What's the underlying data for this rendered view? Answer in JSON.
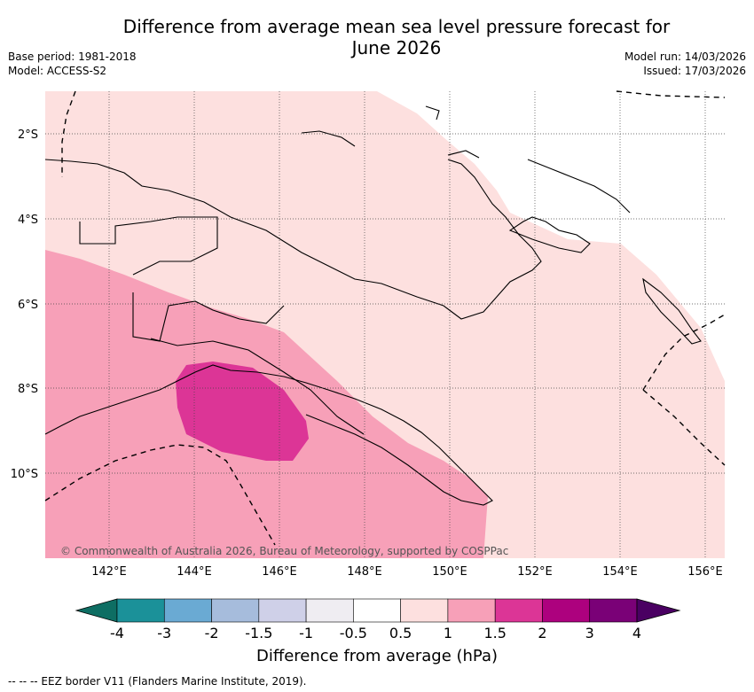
{
  "title_line1": "Difference from average mean sea level pressure forecast for",
  "title_line2": "June 2026",
  "left_meta": {
    "base_period": "Base period: 1981-2018",
    "model": "Model: ACCESS-S2"
  },
  "right_meta": {
    "model_run": "Model run: 14/03/2026",
    "issued": "Issued: 17/03/2026"
  },
  "lat_labels": [
    "2°S",
    "4°S",
    "6°S",
    "8°S",
    "10°S"
  ],
  "lon_labels": [
    "142°E",
    "144°E",
    "146°E",
    "148°E",
    "150°E",
    "152°E",
    "154°E",
    "156°E"
  ],
  "copyright": "© Commonwealth of Australia 2026, Bureau of Meteorology, supported by COSPPac",
  "colorbar": {
    "title": "Difference from average (hPa)",
    "tick_labels": [
      "-4",
      "-3",
      "-2",
      "-1.5",
      "-1",
      "-0.5",
      "0.5",
      "1",
      "1.5",
      "2",
      "3",
      "4"
    ],
    "colors": [
      "#0e6e63",
      "#1b9199",
      "#6aaad3",
      "#a6bcdc",
      "#cfd0e8",
      "#efedf2",
      "#ffffff",
      "#fde0df",
      "#f7a0b8",
      "#dc3596",
      "#ad017e",
      "#7a0177",
      "#4a0062"
    ]
  },
  "fill_colors": {
    "light_pink": "#fde0df",
    "medium_pink": "#f7a0b8",
    "magenta": "#dc3596"
  },
  "footnote": "--  --  -- EEZ border V11 (Flanders Marine Institute, 2019)."
}
